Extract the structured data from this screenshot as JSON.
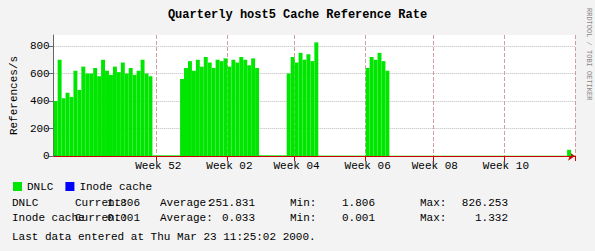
{
  "chart_data": {
    "type": "bar",
    "title": "Quarterly host5 Cache Reference Rate",
    "y_label": "References/s",
    "watermark": "RRDTOOL / TOBI OETIKER",
    "footer": "Last data entered at Thu Mar 23 11:25:02 2000.",
    "stats_labels": [
      "Current:",
      "Average:",
      "Min:",
      "Max:"
    ],
    "ylim": [
      0,
      880
    ],
    "yticks": [
      0,
      200,
      400,
      600,
      800
    ],
    "grid": true,
    "legend": "bottom-left",
    "categories": [
      null,
      null,
      null,
      null,
      null,
      null,
      null,
      null,
      null,
      null,
      null,
      null,
      null,
      null,
      null,
      null,
      null,
      null,
      null,
      null,
      null,
      null,
      null,
      null,
      null,
      null,
      "Week 52",
      null,
      null,
      null,
      null,
      null,
      null,
      null,
      null,
      null,
      null,
      null,
      null,
      null,
      null,
      null,
      null,
      null,
      "Week 02",
      null,
      null,
      null,
      null,
      null,
      null,
      null,
      null,
      null,
      null,
      null,
      null,
      null,
      null,
      null,
      null,
      "Week 04",
      null,
      null,
      null,
      null,
      null,
      null,
      null,
      null,
      null,
      null,
      null,
      null,
      null,
      null,
      null,
      null,
      null,
      "Week 06",
      null,
      null,
      null,
      null,
      null,
      null,
      null,
      null,
      null,
      null,
      null,
      null,
      null,
      null,
      null,
      null,
      "Week 08",
      null,
      null,
      null,
      null,
      null,
      null,
      null,
      null,
      null,
      null,
      null,
      null,
      null,
      null,
      null,
      null,
      null,
      "Week 10",
      null,
      null,
      null,
      null,
      null,
      null,
      null,
      null,
      null,
      null,
      null,
      null,
      null,
      null,
      null,
      null,
      null
    ],
    "series": [
      {
        "name": "DNLC",
        "color": "#00e600",
        "stats": [
          1.806,
          251.831,
          1.806,
          826.253
        ],
        "values": [
          400,
          700,
          420,
          460,
          430,
          620,
          480,
          650,
          600,
          600,
          640,
          580,
          700,
          620,
          590,
          650,
          610,
          680,
          600,
          640,
          590,
          620,
          700,
          600,
          580,
          5,
          5,
          5,
          5,
          5,
          5,
          5,
          560,
          640,
          690,
          620,
          700,
          650,
          720,
          680,
          640,
          700,
          690,
          710,
          650,
          700,
          680,
          720,
          700,
          660,
          710,
          640,
          5,
          5,
          5,
          5,
          5,
          5,
          5,
          600,
          720,
          680,
          750,
          700,
          740,
          690,
          826.253,
          3,
          3,
          3,
          3,
          3,
          3,
          3,
          3,
          3,
          3,
          3,
          3,
          640,
          720,
          700,
          750,
          690,
          620,
          2,
          2,
          2,
          2,
          2,
          2,
          2,
          2,
          2,
          2,
          2,
          2,
          2,
          2,
          2,
          2,
          2,
          2,
          2,
          2,
          2,
          2,
          2,
          2,
          2,
          2,
          2,
          2,
          2,
          2,
          2,
          2,
          2,
          2,
          2,
          2,
          2,
          2,
          2,
          2,
          2,
          2,
          2,
          2,
          2,
          45,
          1.806
        ]
      },
      {
        "name": "Inode cache",
        "color": "#0000ff",
        "stats": [
          0.001,
          0.033,
          0.001,
          1.332
        ],
        "values": [
          1.332,
          0.03,
          0.03,
          0.03,
          0.03,
          0.03,
          0.03,
          0.03,
          0.03,
          0.03,
          0.03,
          0.03,
          0.03,
          0.03,
          0.03,
          0.03,
          0.03,
          0.03,
          0.03,
          0.03,
          0.03,
          0.03,
          0.03,
          0.03,
          0.03,
          0.03,
          0.03,
          0.03,
          0.03,
          0.03,
          0.03,
          0.03,
          0.03,
          0.03,
          0.03,
          0.03,
          0.03,
          0.03,
          0.03,
          0.03,
          0.03,
          0.03,
          0.03,
          0.03,
          0.03,
          0.03,
          0.03,
          0.03,
          0.03,
          0.03,
          0.03,
          0.03,
          0.03,
          0.03,
          0.03,
          0.03,
          0.03,
          0.03,
          0.03,
          0.03,
          0.03,
          0.03,
          0.03,
          0.03,
          0.03,
          0.03,
          0.03,
          0.03,
          0.03,
          0.03,
          0.03,
          0.03,
          0.03,
          0.03,
          0.03,
          0.03,
          0.03,
          0.03,
          0.03,
          0.03,
          0.03,
          0.03,
          0.03,
          0.03,
          0.03,
          0.03,
          0.03,
          0.03,
          0.03,
          0.03,
          0.03,
          0.03,
          0.03,
          0.03,
          0.03,
          0.03,
          0.03,
          0.03,
          0.03,
          0.03,
          0.03,
          0.03,
          0.03,
          0.03,
          0.03,
          0.03,
          0.03,
          0.03,
          0.03,
          0.03,
          0.03,
          0.03,
          0.03,
          0.03,
          0.03,
          0.03,
          0.03,
          0.03,
          0.03,
          0.03,
          0.03,
          0.03,
          0.03,
          0.03,
          0.03,
          0.03,
          0.03,
          0.03,
          0.03,
          0.03,
          0.03,
          0.001
        ]
      }
    ]
  }
}
